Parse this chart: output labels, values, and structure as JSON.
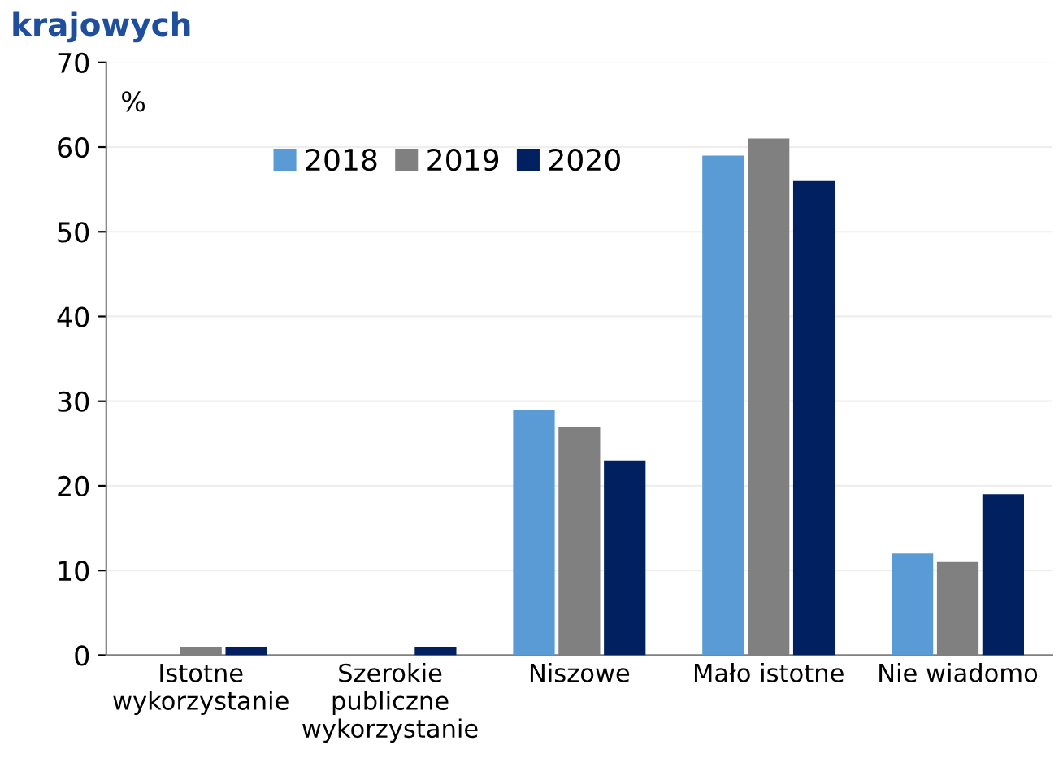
{
  "chart_data": {
    "type": "bar",
    "title": "krajowych",
    "ylabel": "%",
    "categories": [
      "Istotne\nwykorzystanie",
      "Szerokie\npubliczne\nwykorzystanie",
      "Niszowe",
      "Mało istotne",
      "Nie wiadomo"
    ],
    "series": [
      {
        "name": "2018",
        "color": "#5b9bd5",
        "values": [
          0,
          0,
          29,
          59,
          12
        ]
      },
      {
        "name": "2019",
        "color": "#808080",
        "values": [
          1,
          0,
          27,
          61,
          11
        ]
      },
      {
        "name": "2020",
        "color": "#002060",
        "values": [
          1,
          1,
          23,
          56,
          19
        ]
      }
    ],
    "ylim": [
      0,
      70
    ],
    "yticks": [
      0,
      10,
      20,
      30,
      40,
      50,
      60,
      70
    ],
    "grid": "y",
    "legend": "top left"
  }
}
